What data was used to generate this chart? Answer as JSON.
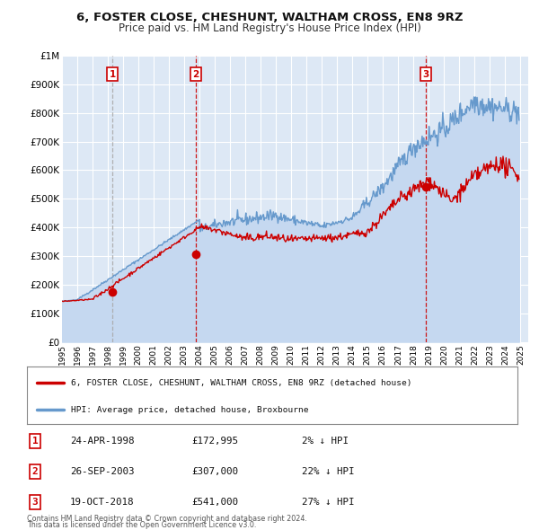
{
  "title1": "6, FOSTER CLOSE, CHESHUNT, WALTHAM CROSS, EN8 9RZ",
  "title2": "Price paid vs. HM Land Registry's House Price Index (HPI)",
  "ylim": [
    0,
    1000000
  ],
  "yticks": [
    0,
    100000,
    200000,
    300000,
    400000,
    500000,
    600000,
    700000,
    800000,
    900000,
    1000000
  ],
  "ytick_labels": [
    "£0",
    "£100K",
    "£200K",
    "£300K",
    "£400K",
    "£500K",
    "£600K",
    "£700K",
    "£800K",
    "£900K",
    "£1M"
  ],
  "xlim_start": 1995.0,
  "xlim_end": 2025.5,
  "fig_bg": "#ffffff",
  "plot_bg_color": "#dde8f5",
  "sale_color": "#cc0000",
  "hpi_color": "#6699cc",
  "hpi_fill_color": "#c5d8f0",
  "grid_color": "#ffffff",
  "vline_color_sale": "#cc0000",
  "vline_color_1": "#aaaaaa",
  "sale_points": [
    {
      "date": 1998.31,
      "price": 172995,
      "label": "1",
      "vline_style": "dashed_grey"
    },
    {
      "date": 2003.74,
      "price": 307000,
      "label": "2",
      "vline_style": "dashed_red"
    },
    {
      "date": 2018.8,
      "price": 541000,
      "label": "3",
      "vline_style": "dashed_red"
    }
  ],
  "legend_sale_label": "6, FOSTER CLOSE, CHESHUNT, WALTHAM CROSS, EN8 9RZ (detached house)",
  "legend_hpi_label": "HPI: Average price, detached house, Broxbourne",
  "table_rows": [
    {
      "num": "1",
      "date": "24-APR-1998",
      "price": "£172,995",
      "change": "2% ↓ HPI"
    },
    {
      "num": "2",
      "date": "26-SEP-2003",
      "price": "£307,000",
      "change": "22% ↓ HPI"
    },
    {
      "num": "3",
      "date": "19-OCT-2018",
      "price": "£541,000",
      "change": "27% ↓ HPI"
    }
  ],
  "footer1": "Contains HM Land Registry data © Crown copyright and database right 2024.",
  "footer2": "This data is licensed under the Open Government Licence v3.0."
}
